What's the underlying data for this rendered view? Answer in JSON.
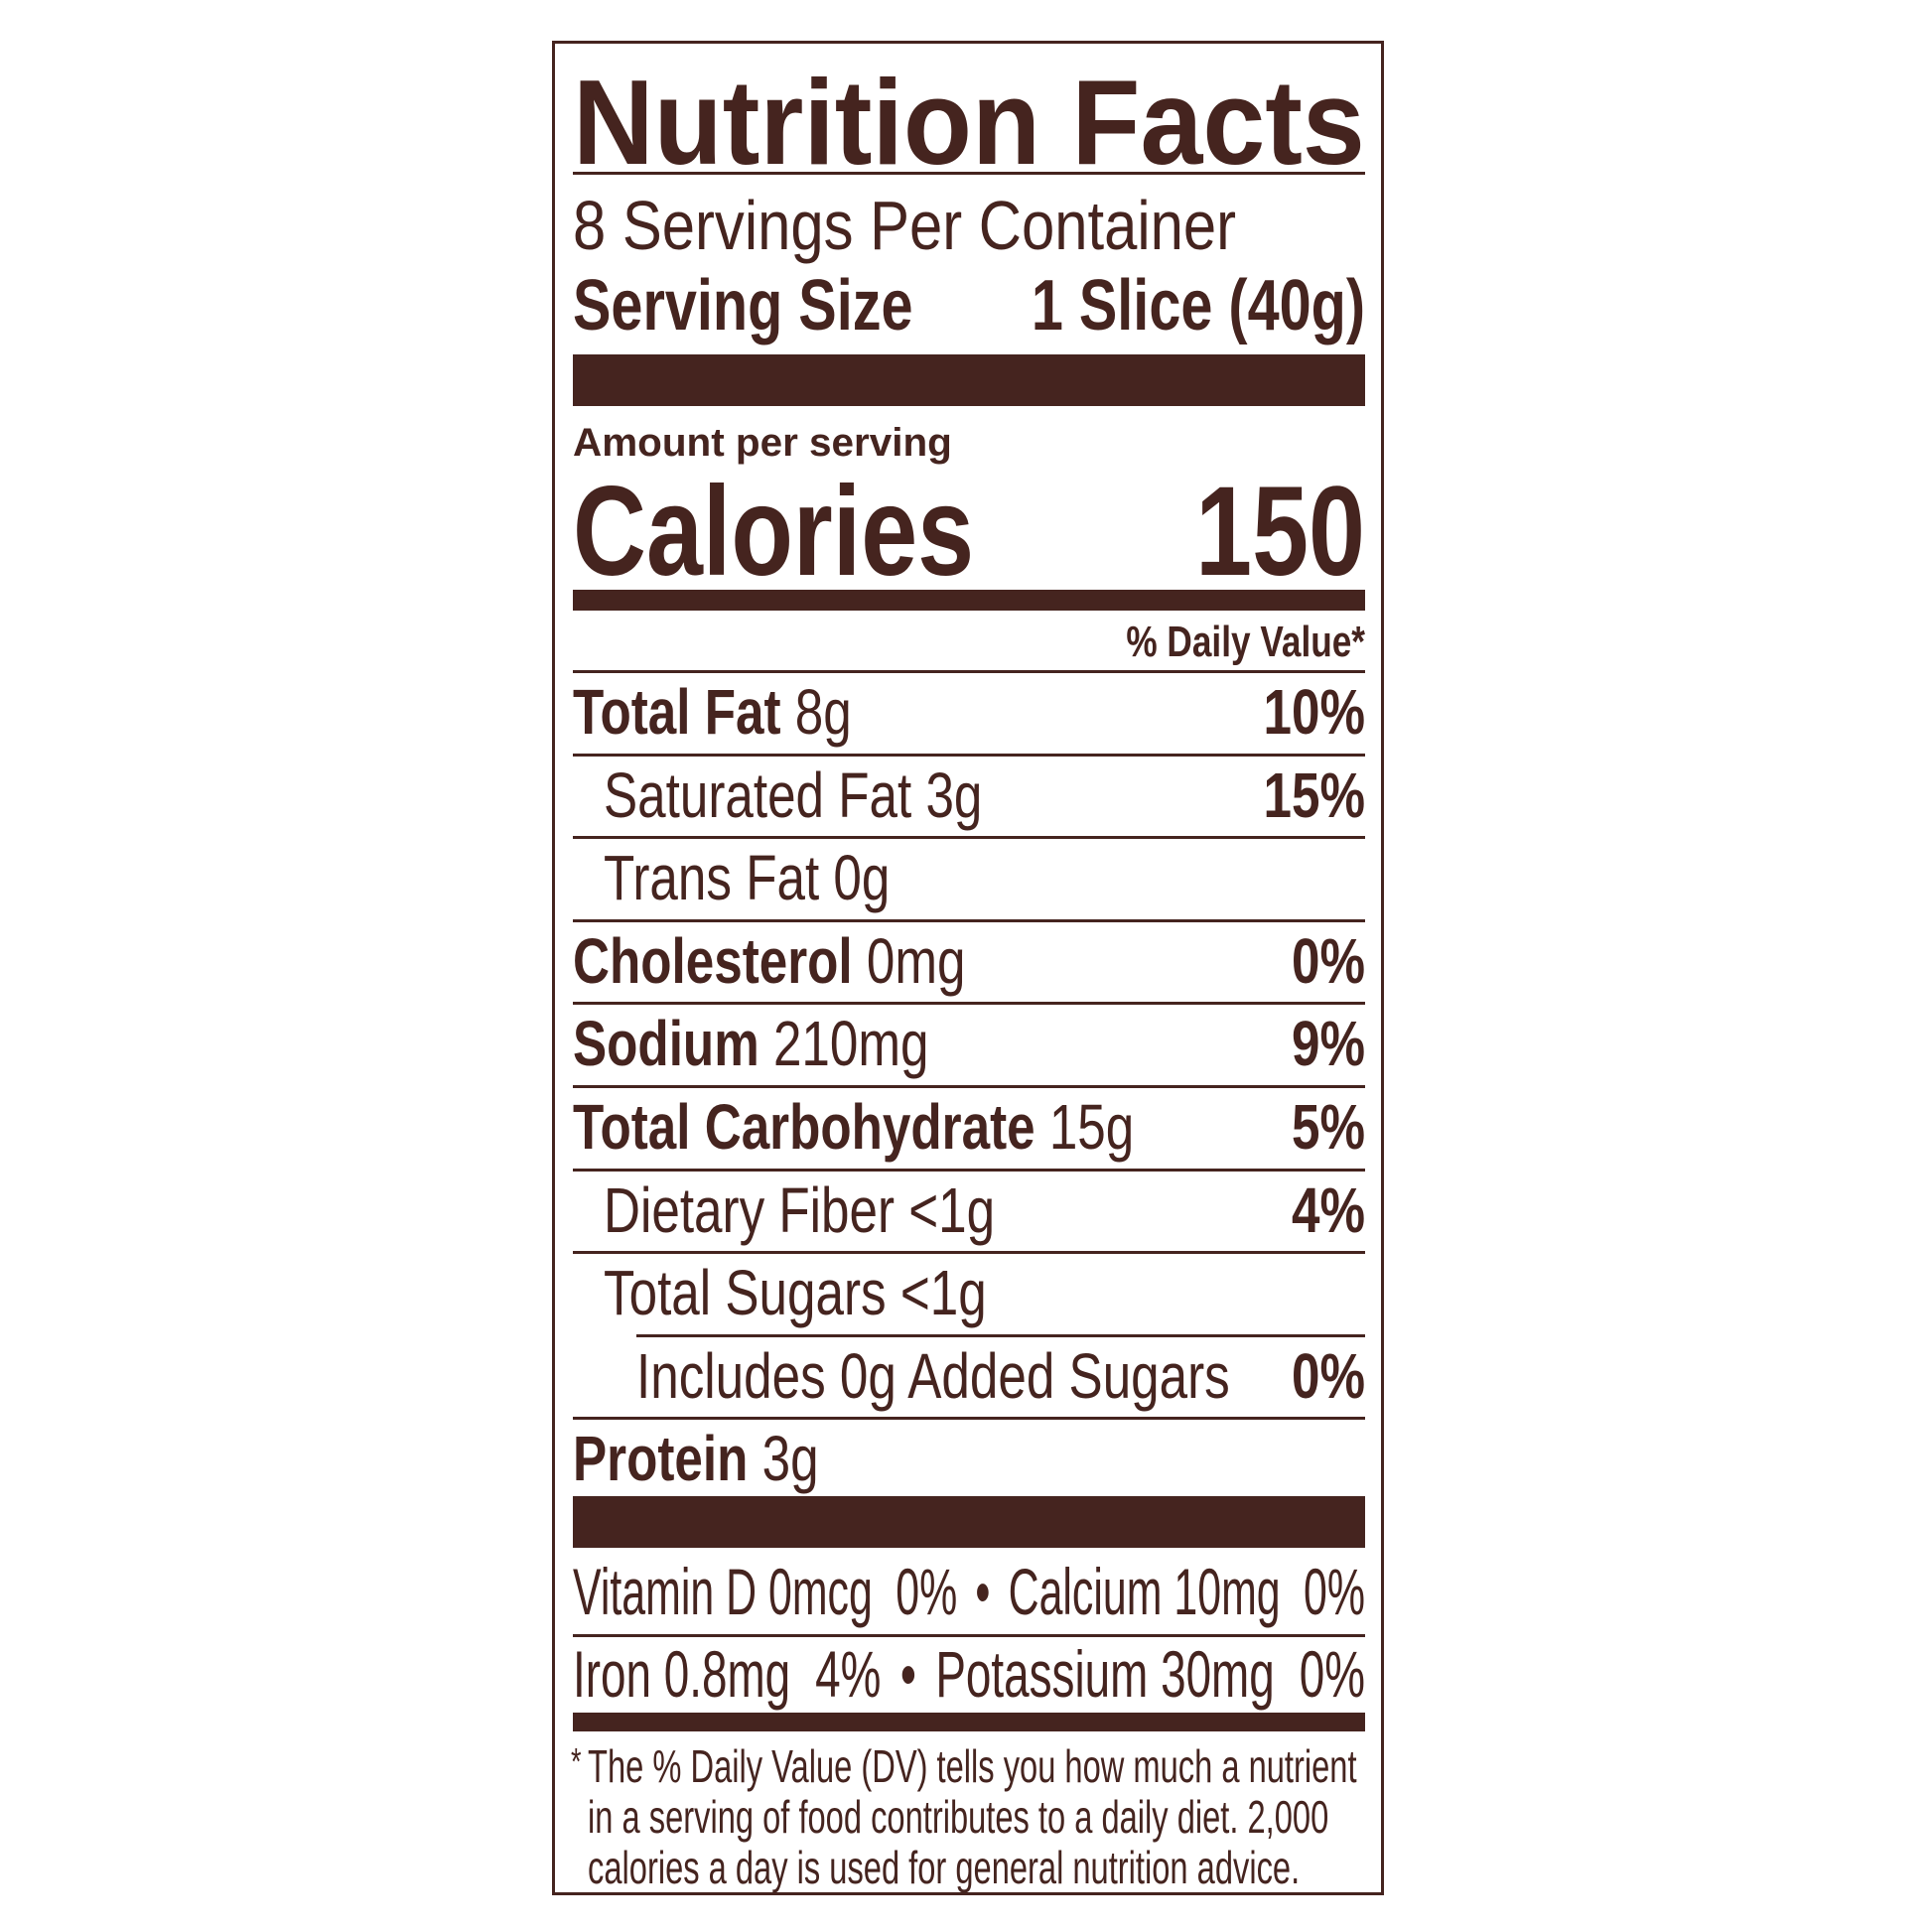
{
  "title": "Nutrition Facts",
  "servings_per_container": "8 Servings Per Container",
  "serving_size_label": "Serving Size",
  "serving_size_value": "1 Slice (40g)",
  "amount_per_serving": "Amount per serving",
  "calories_label": "Calories",
  "calories_value": "150",
  "daily_value_header": "% Daily Value*",
  "nutrients": [
    {
      "name": "Total Fat",
      "amount": "8g",
      "dv": "10%"
    },
    {
      "name": "Saturated Fat 3g",
      "dv": "15%"
    },
    {
      "name": "Trans Fat 0g",
      "dv": ""
    },
    {
      "name": "Cholesterol",
      "amount": "0mg",
      "dv": "0%"
    },
    {
      "name": "Sodium",
      "amount": "210mg",
      "dv": "9%"
    },
    {
      "name": "Total Carbohydrate",
      "amount": "15g",
      "dv": "5%"
    },
    {
      "name": "Dietary Fiber <1g",
      "dv": "4%"
    },
    {
      "name": "Total Sugars <1g",
      "dv": ""
    },
    {
      "name": "Includes 0g Added Sugars",
      "dv": "0%"
    },
    {
      "name": "Protein",
      "amount": "3g",
      "dv": ""
    }
  ],
  "vitamins": [
    {
      "name": "Vitamin D 0mcg",
      "dv": "0%"
    },
    {
      "name": "Calcium 10mg",
      "dv": "0%"
    },
    {
      "name": "Iron 0.8mg",
      "dv": "4%"
    },
    {
      "name": "Potassium 30mg",
      "dv": "0%"
    }
  ],
  "bullet": "•",
  "footnote": {
    "asterisk": "*",
    "lines": [
      "The % Daily Value (DV) tells you how much a nutrient",
      "in a serving of food contributes to a daily diet. 2,000",
      "calories a day is used for general nutrition advice."
    ]
  },
  "colors": {
    "ink": "#45241f",
    "background": "#ffffff"
  }
}
